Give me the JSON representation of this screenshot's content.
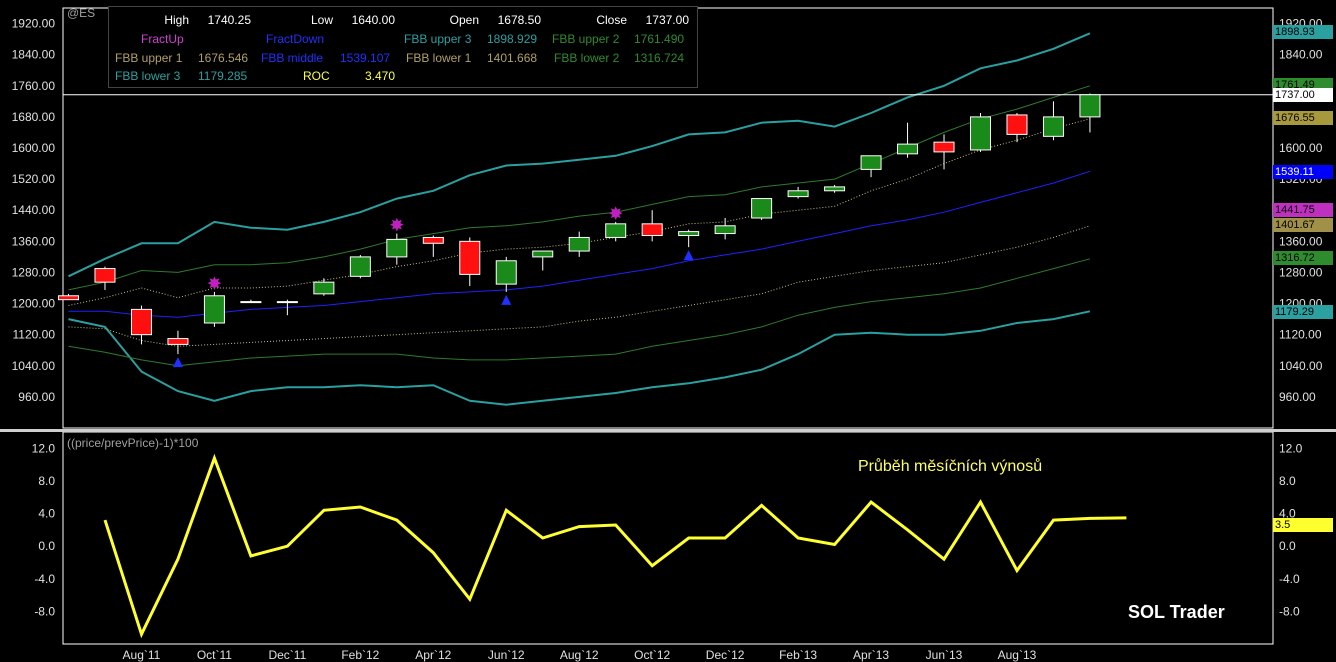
{
  "symbol": "@ES",
  "info": {
    "high_label": "High",
    "high": "1740.25",
    "low_label": "Low",
    "low": "1640.00",
    "open_label": "Open",
    "open": "1678.50",
    "close_label": "Close",
    "close": "1737.00",
    "fractup_label": "FractUp",
    "fractdown_label": "FractDown",
    "fbb_upper3_label": "FBB upper 3",
    "fbb_upper3": "1898.929",
    "fbb_upper2_label": "FBB upper 2",
    "fbb_upper2": "1761.490",
    "fbb_upper1_label": "FBB upper 1",
    "fbb_upper1": "1676.546",
    "fbb_middle_label": "FBB middle",
    "fbb_middle": "1539.107",
    "fbb_lower1_label": "FBB lower 1",
    "fbb_lower1": "1401.668",
    "fbb_lower2_label": "FBB lower 2",
    "fbb_lower2": "1316.724",
    "fbb_lower3_label": "FBB lower 3",
    "fbb_lower3": "1179.285",
    "roc_label": "ROC",
    "roc": "3.470"
  },
  "price_tags": [
    {
      "text": "1898.93",
      "bg": "#2aa0a0",
      "fg": "#000000",
      "value": 1898.93
    },
    {
      "text": "1761.49",
      "bg": "#2e8b2e",
      "fg": "#000000",
      "value": 1761.49
    },
    {
      "text": "1737.00",
      "bg": "#ffffff",
      "fg": "#000000",
      "value": 1737.0
    },
    {
      "text": "1676.55",
      "bg": "#a89a3c",
      "fg": "#000000",
      "value": 1676.55
    },
    {
      "text": "1539.11",
      "bg": "#0000ff",
      "fg": "#ffffff",
      "value": 1539.11
    },
    {
      "text": "1441.75",
      "bg": "#c030c0",
      "fg": "#000000",
      "value": 1441.75
    },
    {
      "text": "1401.67",
      "bg": "#a09048",
      "fg": "#000000",
      "value": 1401.67
    },
    {
      "text": "1316.72",
      "bg": "#2e8b2e",
      "fg": "#000000",
      "value": 1316.72
    },
    {
      "text": "1179.29",
      "bg": "#2aa0a0",
      "fg": "#000000",
      "value": 1179.29
    }
  ],
  "lower_panel": {
    "title": "((price/prevPrice)-1)*100",
    "annotation": "Průběh měsíčních výnosů",
    "tag": "3.5",
    "brand": "SOL Trader"
  },
  "colors": {
    "bull": "#1a8a1a",
    "bear": "#ff1010",
    "upper3": "#2aa0a0",
    "upper2": "#2e7a2e",
    "upper1": "#c8c070",
    "middle": "#2020ff",
    "roc": "#ffff30",
    "fractal_up": "#c020c0",
    "fractal_down": "#2030ff"
  },
  "chart_data": [
    {
      "type": "candlestick",
      "ylim": [
        880,
        1960
      ],
      "yticks": [
        960,
        1040,
        1120,
        1200,
        1280,
        1360,
        1440,
        1520,
        1600,
        1680,
        1760,
        1840,
        1920
      ],
      "ytick_labels": [
        "960.00",
        "1040.00",
        "1120.00",
        "1200.00",
        "1280.00",
        "1360.00",
        "1440.00",
        "1520.00",
        "1600.00",
        "1680.00",
        "1760.00",
        "1840.00",
        "1920.00"
      ],
      "xtick_labels": [
        "Aug`11",
        "Oct`11",
        "Dec`11",
        "Feb`12",
        "Apr`12",
        "Jun`12",
        "Aug`12",
        "Oct`12",
        "Dec`12",
        "Feb`13",
        "Apr`13",
        "Jun`13",
        "Aug`13"
      ],
      "xtick_index": [
        2,
        4,
        6,
        8,
        10,
        12,
        14,
        16,
        18,
        20,
        22,
        24,
        26
      ],
      "ohlc": [
        [
          1220,
          1225,
          1210,
          1210
        ],
        [
          1290,
          1295,
          1235,
          1255
        ],
        [
          1185,
          1195,
          1095,
          1120
        ],
        [
          1110,
          1130,
          1070,
          1095
        ],
        [
          1150,
          1230,
          1140,
          1220
        ],
        [
          1205,
          1210,
          1205,
          1205
        ],
        [
          1205,
          1210,
          1170,
          1205
        ],
        [
          1225,
          1265,
          1220,
          1255
        ],
        [
          1270,
          1325,
          1265,
          1320
        ],
        [
          1320,
          1380,
          1300,
          1365
        ],
        [
          1370,
          1375,
          1320,
          1355
        ],
        [
          1360,
          1370,
          1245,
          1275
        ],
        [
          1250,
          1320,
          1230,
          1310
        ],
        [
          1320,
          1335,
          1285,
          1335
        ],
        [
          1335,
          1385,
          1320,
          1370
        ],
        [
          1370,
          1410,
          1360,
          1405
        ],
        [
          1405,
          1440,
          1360,
          1375
        ],
        [
          1375,
          1390,
          1345,
          1385
        ],
        [
          1380,
          1420,
          1365,
          1400
        ],
        [
          1420,
          1465,
          1415,
          1470
        ],
        [
          1475,
          1500,
          1470,
          1490
        ],
        [
          1490,
          1505,
          1485,
          1500
        ],
        [
          1545,
          1580,
          1525,
          1580
        ],
        [
          1585,
          1665,
          1575,
          1610
        ],
        [
          1615,
          1635,
          1545,
          1590
        ],
        [
          1595,
          1690,
          1590,
          1680
        ],
        [
          1685,
          1690,
          1615,
          1635
        ],
        [
          1630,
          1720,
          1620,
          1680
        ],
        [
          1680,
          1740,
          1640,
          1737
        ]
      ],
      "bands": {
        "upper3": [
          1270,
          1315,
          1355,
          1355,
          1410,
          1395,
          1390,
          1410,
          1435,
          1470,
          1490,
          1530,
          1555,
          1560,
          1570,
          1580,
          1605,
          1635,
          1640,
          1665,
          1670,
          1655,
          1690,
          1730,
          1760,
          1805,
          1825,
          1855,
          1895
        ],
        "upper2": [
          1235,
          1255,
          1285,
          1280,
          1300,
          1300,
          1305,
          1320,
          1340,
          1365,
          1380,
          1395,
          1400,
          1410,
          1425,
          1435,
          1455,
          1475,
          1480,
          1500,
          1510,
          1520,
          1560,
          1600,
          1640,
          1675,
          1700,
          1730,
          1760
        ],
        "upper1": [
          1195,
          1215,
          1240,
          1215,
          1240,
          1240,
          1245,
          1260,
          1275,
          1295,
          1310,
          1330,
          1340,
          1345,
          1355,
          1370,
          1385,
          1405,
          1410,
          1430,
          1440,
          1450,
          1490,
          1520,
          1560,
          1595,
          1620,
          1650,
          1675
        ],
        "middle": [
          1180,
          1180,
          1170,
          1165,
          1175,
          1185,
          1190,
          1195,
          1205,
          1215,
          1225,
          1230,
          1235,
          1245,
          1260,
          1275,
          1290,
          1310,
          1325,
          1340,
          1360,
          1380,
          1400,
          1415,
          1435,
          1460,
          1485,
          1510,
          1540
        ],
        "lower1": [
          1140,
          1135,
          1105,
          1090,
          1095,
          1100,
          1105,
          1110,
          1115,
          1120,
          1125,
          1130,
          1135,
          1140,
          1155,
          1165,
          1180,
          1195,
          1210,
          1225,
          1255,
          1270,
          1285,
          1295,
          1305,
          1325,
          1345,
          1370,
          1400
        ],
        "lower2": [
          1090,
          1075,
          1055,
          1040,
          1050,
          1060,
          1065,
          1070,
          1070,
          1070,
          1060,
          1055,
          1055,
          1060,
          1065,
          1070,
          1090,
          1105,
          1120,
          1140,
          1170,
          1190,
          1205,
          1215,
          1225,
          1240,
          1265,
          1290,
          1315
        ],
        "lower3": [
          1160,
          1140,
          1025,
          975,
          950,
          975,
          985,
          985,
          990,
          985,
          990,
          950,
          940,
          950,
          960,
          970,
          985,
          995,
          1010,
          1030,
          1070,
          1120,
          1125,
          1120,
          1120,
          1130,
          1150,
          1160,
          1180
        ]
      },
      "fractal_up": [
        4,
        9,
        15
      ],
      "fractal_down": [
        3,
        12,
        17
      ]
    },
    {
      "type": "line",
      "title": "((price/prevPrice)-1)*100",
      "ylim": [
        -12,
        14
      ],
      "yticks": [
        -8,
        -4,
        0,
        4,
        8,
        12
      ],
      "ytick_labels": [
        "-8.0",
        "-4.0",
        "0.0",
        "4.0",
        "8.0",
        "12.0"
      ],
      "series": [
        {
          "values": [
            3.2,
            -10.8,
            -1.6,
            10.8,
            -1.2,
            0.0,
            4.4,
            4.8,
            3.2,
            -0.8,
            -6.5,
            4.4,
            1.0,
            2.4,
            2.6,
            -2.4,
            1.0,
            1.0,
            5.0,
            1.0,
            0.2,
            5.4,
            2.0,
            -1.6,
            5.4,
            -3.0,
            3.2,
            3.4,
            3.47
          ]
        }
      ]
    }
  ]
}
